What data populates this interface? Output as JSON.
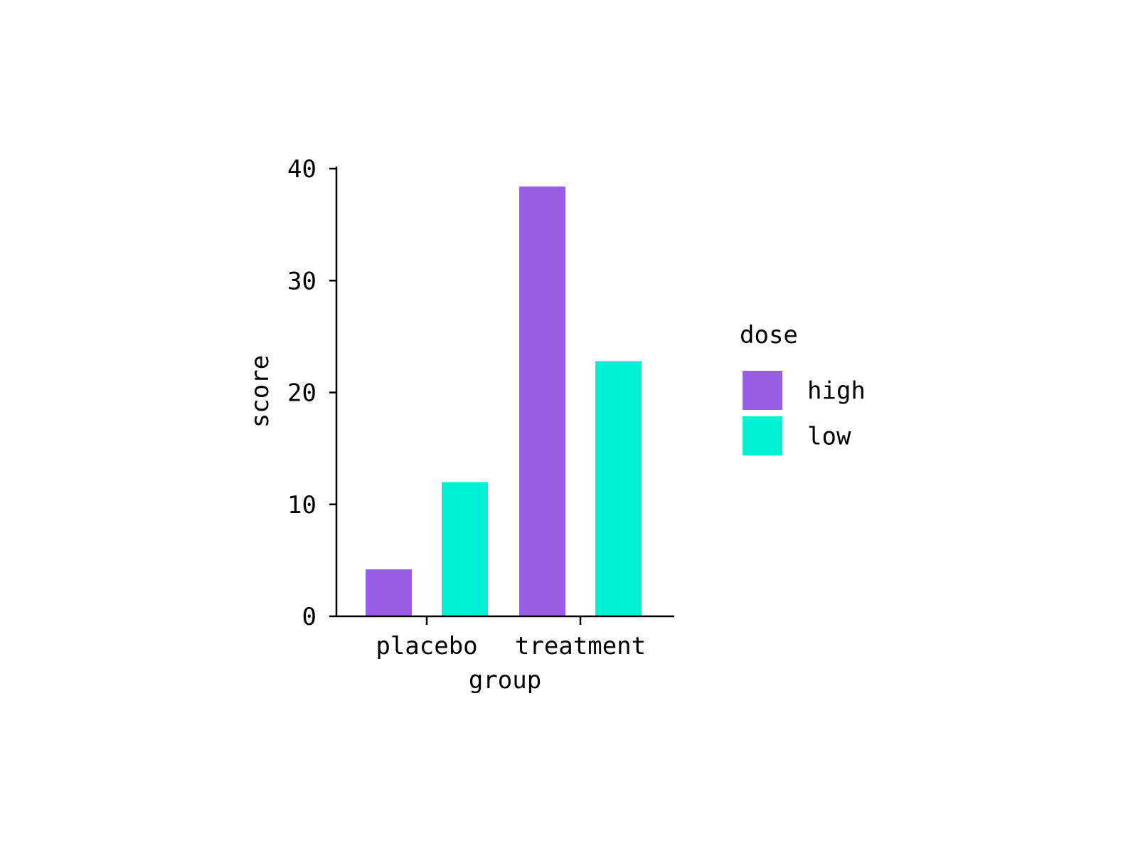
{
  "chart_data": {
    "type": "bar",
    "categories": [
      "placebo",
      "treatment"
    ],
    "series": [
      {
        "name": "high",
        "values": [
          4.2,
          38.4
        ],
        "color": "#9A5EE6"
      },
      {
        "name": "low",
        "values": [
          12.0,
          22.8
        ],
        "color": "#00F2D2"
      }
    ],
    "xlabel": "group",
    "ylabel": "score",
    "ylim": [
      0,
      40
    ],
    "yticks": [
      0,
      10,
      20,
      30,
      40
    ],
    "grid": false,
    "legend": {
      "title": "dose",
      "position": "right"
    }
  }
}
